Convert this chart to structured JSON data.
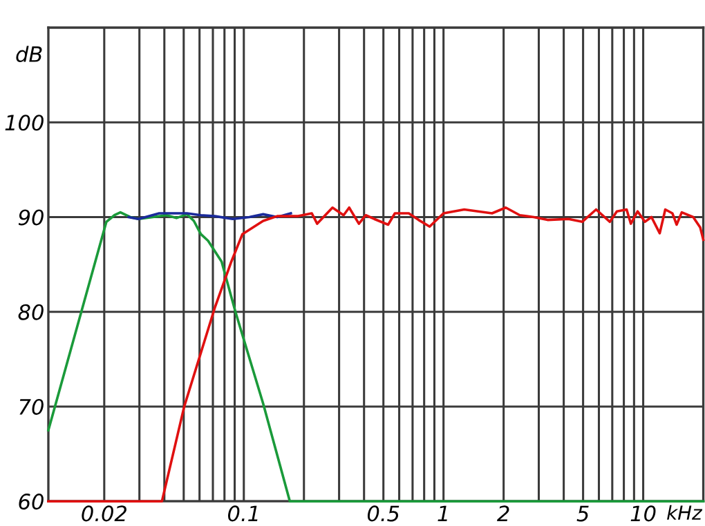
{
  "chart_data": {
    "type": "line",
    "xlabel": "kHz",
    "ylabel": "dB",
    "log": "x",
    "grid": true,
    "legend": false,
    "marker": "none",
    "line_style": "solid",
    "xlim": [
      0.0105,
      20
    ],
    "ylim": [
      60,
      110
    ],
    "xticks": [
      {
        "value": 0.02,
        "label": "0.02"
      },
      {
        "value": 0.03,
        "label": null
      },
      {
        "value": 0.04,
        "label": null
      },
      {
        "value": 0.05,
        "label": null
      },
      {
        "value": 0.06,
        "label": null
      },
      {
        "value": 0.07,
        "label": null
      },
      {
        "value": 0.08,
        "label": null
      },
      {
        "value": 0.09,
        "label": null
      },
      {
        "value": 0.1,
        "label": "0.1"
      },
      {
        "value": 0.2,
        "label": null
      },
      {
        "value": 0.3,
        "label": null
      },
      {
        "value": 0.4,
        "label": null
      },
      {
        "value": 0.5,
        "label": "0.5"
      },
      {
        "value": 0.6,
        "label": null
      },
      {
        "value": 0.7,
        "label": null
      },
      {
        "value": 0.8,
        "label": null
      },
      {
        "value": 0.9,
        "label": null
      },
      1,
      2,
      {
        "value": 3,
        "label": null
      },
      {
        "value": 4,
        "label": null
      },
      5,
      {
        "value": 6,
        "label": null
      },
      {
        "value": 7,
        "label": null
      },
      {
        "value": 8,
        "label": null
      },
      {
        "value": 9,
        "label": null
      },
      10
    ],
    "yticks": [
      60,
      70,
      80,
      90,
      100
    ],
    "series": [
      {
        "color": "#1a9a3a",
        "x": [
          0.0105,
          0.0205,
          0.0225,
          0.0241,
          0.027,
          0.0297,
          0.035,
          0.0409,
          0.046,
          0.0519,
          0.0562,
          0.0609,
          0.0662,
          0.0774,
          0.0908,
          0.125,
          0.17,
          20
        ],
        "values": [
          67.5,
          89.5,
          90.2,
          90.5,
          90.0,
          89.8,
          90.0,
          90.2,
          89.9,
          90.3,
          89.6,
          88.2,
          87.5,
          85.3,
          80,
          70.3,
          60,
          60
        ]
      },
      {
        "color": "#1a2a9a",
        "x": [
          0.0265,
          0.0297,
          0.0377,
          0.0442,
          0.0519,
          0.0609,
          0.0715,
          0.088,
          0.1066,
          0.125,
          0.147,
          0.172
        ],
        "values": [
          90.0,
          89.8,
          90.4,
          90.4,
          90.4,
          90.2,
          90.1,
          89.8,
          90.0,
          90.3,
          90.0,
          90.4
        ]
      },
      {
        "color": "#e01010",
        "x": [
          0.0105,
          0.0389,
          0.0503,
          0.0715,
          0.0866,
          0.0984,
          0.125,
          0.147,
          0.187,
          0.219,
          0.233,
          0.278,
          0.316,
          0.337,
          0.377,
          0.408,
          0.45,
          0.528,
          0.571,
          0.67,
          0.75,
          0.852,
          1.0,
          1.27,
          1.75,
          2.05,
          2.41,
          2.83,
          3.32,
          4.22,
          4.95,
          5.81,
          6.81,
          7.38,
          8.26,
          8.67,
          9.38,
          10.2,
          11.0,
          12.1,
          12.9,
          14.0,
          14.7,
          15.6,
          17.8,
          19.3,
          20
        ],
        "values": [
          60,
          60,
          70,
          80.4,
          85.3,
          88.2,
          89.6,
          90.1,
          90.1,
          90.4,
          89.3,
          91.0,
          90.2,
          91.0,
          89.3,
          90.2,
          89.8,
          89.2,
          90.4,
          90.4,
          89.7,
          89.0,
          90.4,
          90.8,
          90.4,
          91.0,
          90.2,
          90.0,
          89.7,
          89.8,
          89.5,
          90.8,
          89.5,
          90.6,
          90.8,
          89.3,
          90.6,
          89.5,
          90.0,
          88.3,
          90.8,
          90.4,
          89.2,
          90.5,
          90.0,
          88.9,
          87.6
        ]
      }
    ]
  }
}
